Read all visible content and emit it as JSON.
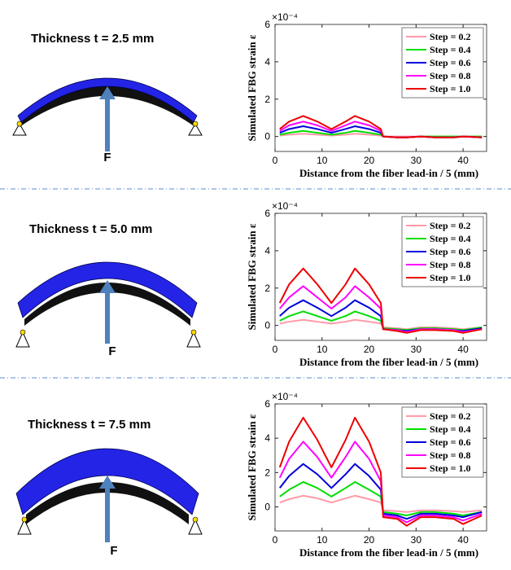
{
  "panels": [
    {
      "thickness": "Thickness t = 2.5 mm",
      "force": "F"
    },
    {
      "thickness": "Thickness t = 5.0 mm",
      "force": "F"
    },
    {
      "thickness": "Thickness t = 7.5 mm",
      "force": "F"
    }
  ],
  "chart_data": [
    {
      "type": "line",
      "y_multiplier": "×10⁻⁴",
      "ylabel": "Simulated FBG strain ε",
      "xlabel": "Distance from the fiber lead-in / 5 (mm)",
      "xlim": [
        0,
        45
      ],
      "ylim": [
        -0.8,
        6
      ],
      "xticks": [
        0,
        10,
        20,
        30,
        40
      ],
      "yticks": [
        0,
        2,
        4,
        6
      ],
      "legend": "upper right",
      "x": [
        1,
        3,
        6,
        9,
        12,
        15,
        17,
        20,
        22.5,
        23,
        26,
        28,
        31,
        34,
        38,
        40,
        44
      ],
      "series": [
        {
          "name": "Step = 0.2",
          "color": "#ff9aa8",
          "values": [
            0.05,
            0.1,
            0.15,
            0.1,
            0.05,
            0.1,
            0.15,
            0.1,
            0.05,
            0,
            0,
            0,
            0,
            0,
            0,
            0,
            0
          ]
        },
        {
          "name": "Step = 0.4",
          "color": "#00dd00",
          "values": [
            0.1,
            0.2,
            0.3,
            0.2,
            0.1,
            0.2,
            0.3,
            0.2,
            0.1,
            0,
            -0.05,
            -0.05,
            0,
            0,
            0,
            0,
            0
          ]
        },
        {
          "name": "Step = 0.6",
          "color": "#0000dd",
          "values": [
            0.2,
            0.4,
            0.55,
            0.4,
            0.2,
            0.4,
            0.55,
            0.4,
            0.2,
            0,
            -0.05,
            -0.05,
            0,
            -0.05,
            -0.05,
            0,
            -0.05
          ]
        },
        {
          "name": "Step = 0.8",
          "color": "#ff00ff",
          "values": [
            0.3,
            0.6,
            0.8,
            0.6,
            0.3,
            0.6,
            0.8,
            0.6,
            0.3,
            0,
            -0.05,
            -0.05,
            0,
            -0.05,
            -0.05,
            0,
            -0.05
          ]
        },
        {
          "name": "Step = 1.0",
          "color": "#ee0000",
          "values": [
            0.4,
            0.8,
            1.1,
            0.8,
            0.4,
            0.8,
            1.1,
            0.8,
            0.4,
            0,
            -0.05,
            -0.05,
            0,
            -0.05,
            -0.05,
            0,
            -0.05
          ]
        }
      ]
    },
    {
      "type": "line",
      "y_multiplier": "×10⁻⁴",
      "ylabel": "Simulated FBG strain ε",
      "xlabel": "Distance from the fiber lead-in / 5 (mm)",
      "xlim": [
        0,
        45
      ],
      "ylim": [
        -0.8,
        6
      ],
      "xticks": [
        0,
        10,
        20,
        30,
        40
      ],
      "yticks": [
        0,
        2,
        4,
        6
      ],
      "legend": "upper right",
      "x": [
        1,
        3,
        6,
        9,
        12,
        15,
        17,
        20,
        22.5,
        23,
        26,
        28,
        31,
        34,
        38,
        40,
        44
      ],
      "series": [
        {
          "name": "Step = 0.2",
          "color": "#ff9aa8",
          "values": [
            0.1,
            0.2,
            0.3,
            0.2,
            0.1,
            0.2,
            0.3,
            0.2,
            0.1,
            -0.1,
            -0.15,
            -0.2,
            -0.1,
            -0.1,
            -0.15,
            -0.2,
            -0.1
          ]
        },
        {
          "name": "Step = 0.4",
          "color": "#00dd00",
          "values": [
            0.25,
            0.5,
            0.75,
            0.5,
            0.25,
            0.5,
            0.75,
            0.5,
            0.25,
            -0.15,
            -0.2,
            -0.25,
            -0.15,
            -0.15,
            -0.2,
            -0.25,
            -0.1
          ]
        },
        {
          "name": "Step = 0.6",
          "color": "#0000dd",
          "values": [
            0.5,
            0.95,
            1.35,
            0.95,
            0.5,
            0.95,
            1.35,
            0.95,
            0.5,
            -0.2,
            -0.25,
            -0.3,
            -0.2,
            -0.2,
            -0.25,
            -0.3,
            -0.15
          ]
        },
        {
          "name": "Step = 0.8",
          "color": "#ff00ff",
          "values": [
            0.9,
            1.5,
            2.1,
            1.5,
            0.9,
            1.5,
            2.1,
            1.5,
            0.9,
            -0.2,
            -0.25,
            -0.35,
            -0.2,
            -0.2,
            -0.25,
            -0.35,
            -0.2
          ]
        },
        {
          "name": "Step = 1.0",
          "color": "#ee0000",
          "values": [
            1.2,
            2.2,
            3.05,
            2.2,
            1.2,
            2.2,
            3.05,
            2.2,
            1.2,
            -0.2,
            -0.3,
            -0.4,
            -0.25,
            -0.25,
            -0.3,
            -0.4,
            -0.2
          ]
        }
      ]
    },
    {
      "type": "line",
      "y_multiplier": "×10⁻⁴",
      "ylabel": "Simulated FBG strain ε",
      "xlabel": "Distance from the fiber lead-in / 5 (mm)",
      "xlim": [
        0,
        45
      ],
      "ylim": [
        -1.4,
        6
      ],
      "xticks": [
        0,
        10,
        20,
        30,
        40
      ],
      "yticks": [
        0,
        2,
        4,
        6
      ],
      "legend": "upper right",
      "x": [
        1,
        3,
        6,
        9,
        12,
        15,
        17,
        20,
        22.5,
        23,
        26,
        28,
        31,
        34,
        38,
        40,
        44
      ],
      "series": [
        {
          "name": "Step = 0.2",
          "color": "#ff9aa8",
          "values": [
            0.25,
            0.45,
            0.65,
            0.5,
            0.25,
            0.5,
            0.65,
            0.45,
            0.25,
            -0.2,
            -0.25,
            -0.3,
            -0.2,
            -0.2,
            -0.25,
            -0.3,
            -0.2
          ]
        },
        {
          "name": "Step = 0.4",
          "color": "#00dd00",
          "values": [
            0.6,
            1.0,
            1.45,
            1.1,
            0.6,
            1.1,
            1.45,
            1.0,
            0.6,
            -0.3,
            -0.4,
            -0.5,
            -0.3,
            -0.3,
            -0.4,
            -0.5,
            -0.3
          ]
        },
        {
          "name": "Step = 0.6",
          "color": "#0000dd",
          "values": [
            1.1,
            1.8,
            2.5,
            1.9,
            1.1,
            1.9,
            2.5,
            1.8,
            1.0,
            -0.4,
            -0.5,
            -0.7,
            -0.4,
            -0.4,
            -0.5,
            -0.6,
            -0.3
          ]
        },
        {
          "name": "Step = 0.8",
          "color": "#ff00ff",
          "values": [
            1.7,
            2.8,
            3.8,
            2.9,
            1.7,
            2.9,
            3.8,
            2.8,
            1.5,
            -0.5,
            -0.6,
            -0.9,
            -0.5,
            -0.5,
            -0.6,
            -0.8,
            -0.4
          ]
        },
        {
          "name": "Step = 1.0",
          "color": "#ee0000",
          "values": [
            2.3,
            3.8,
            5.2,
            3.9,
            2.3,
            3.9,
            5.2,
            3.8,
            2.0,
            -0.6,
            -0.7,
            -1.1,
            -0.6,
            -0.6,
            -0.7,
            -1.0,
            -0.5
          ]
        }
      ]
    }
  ]
}
